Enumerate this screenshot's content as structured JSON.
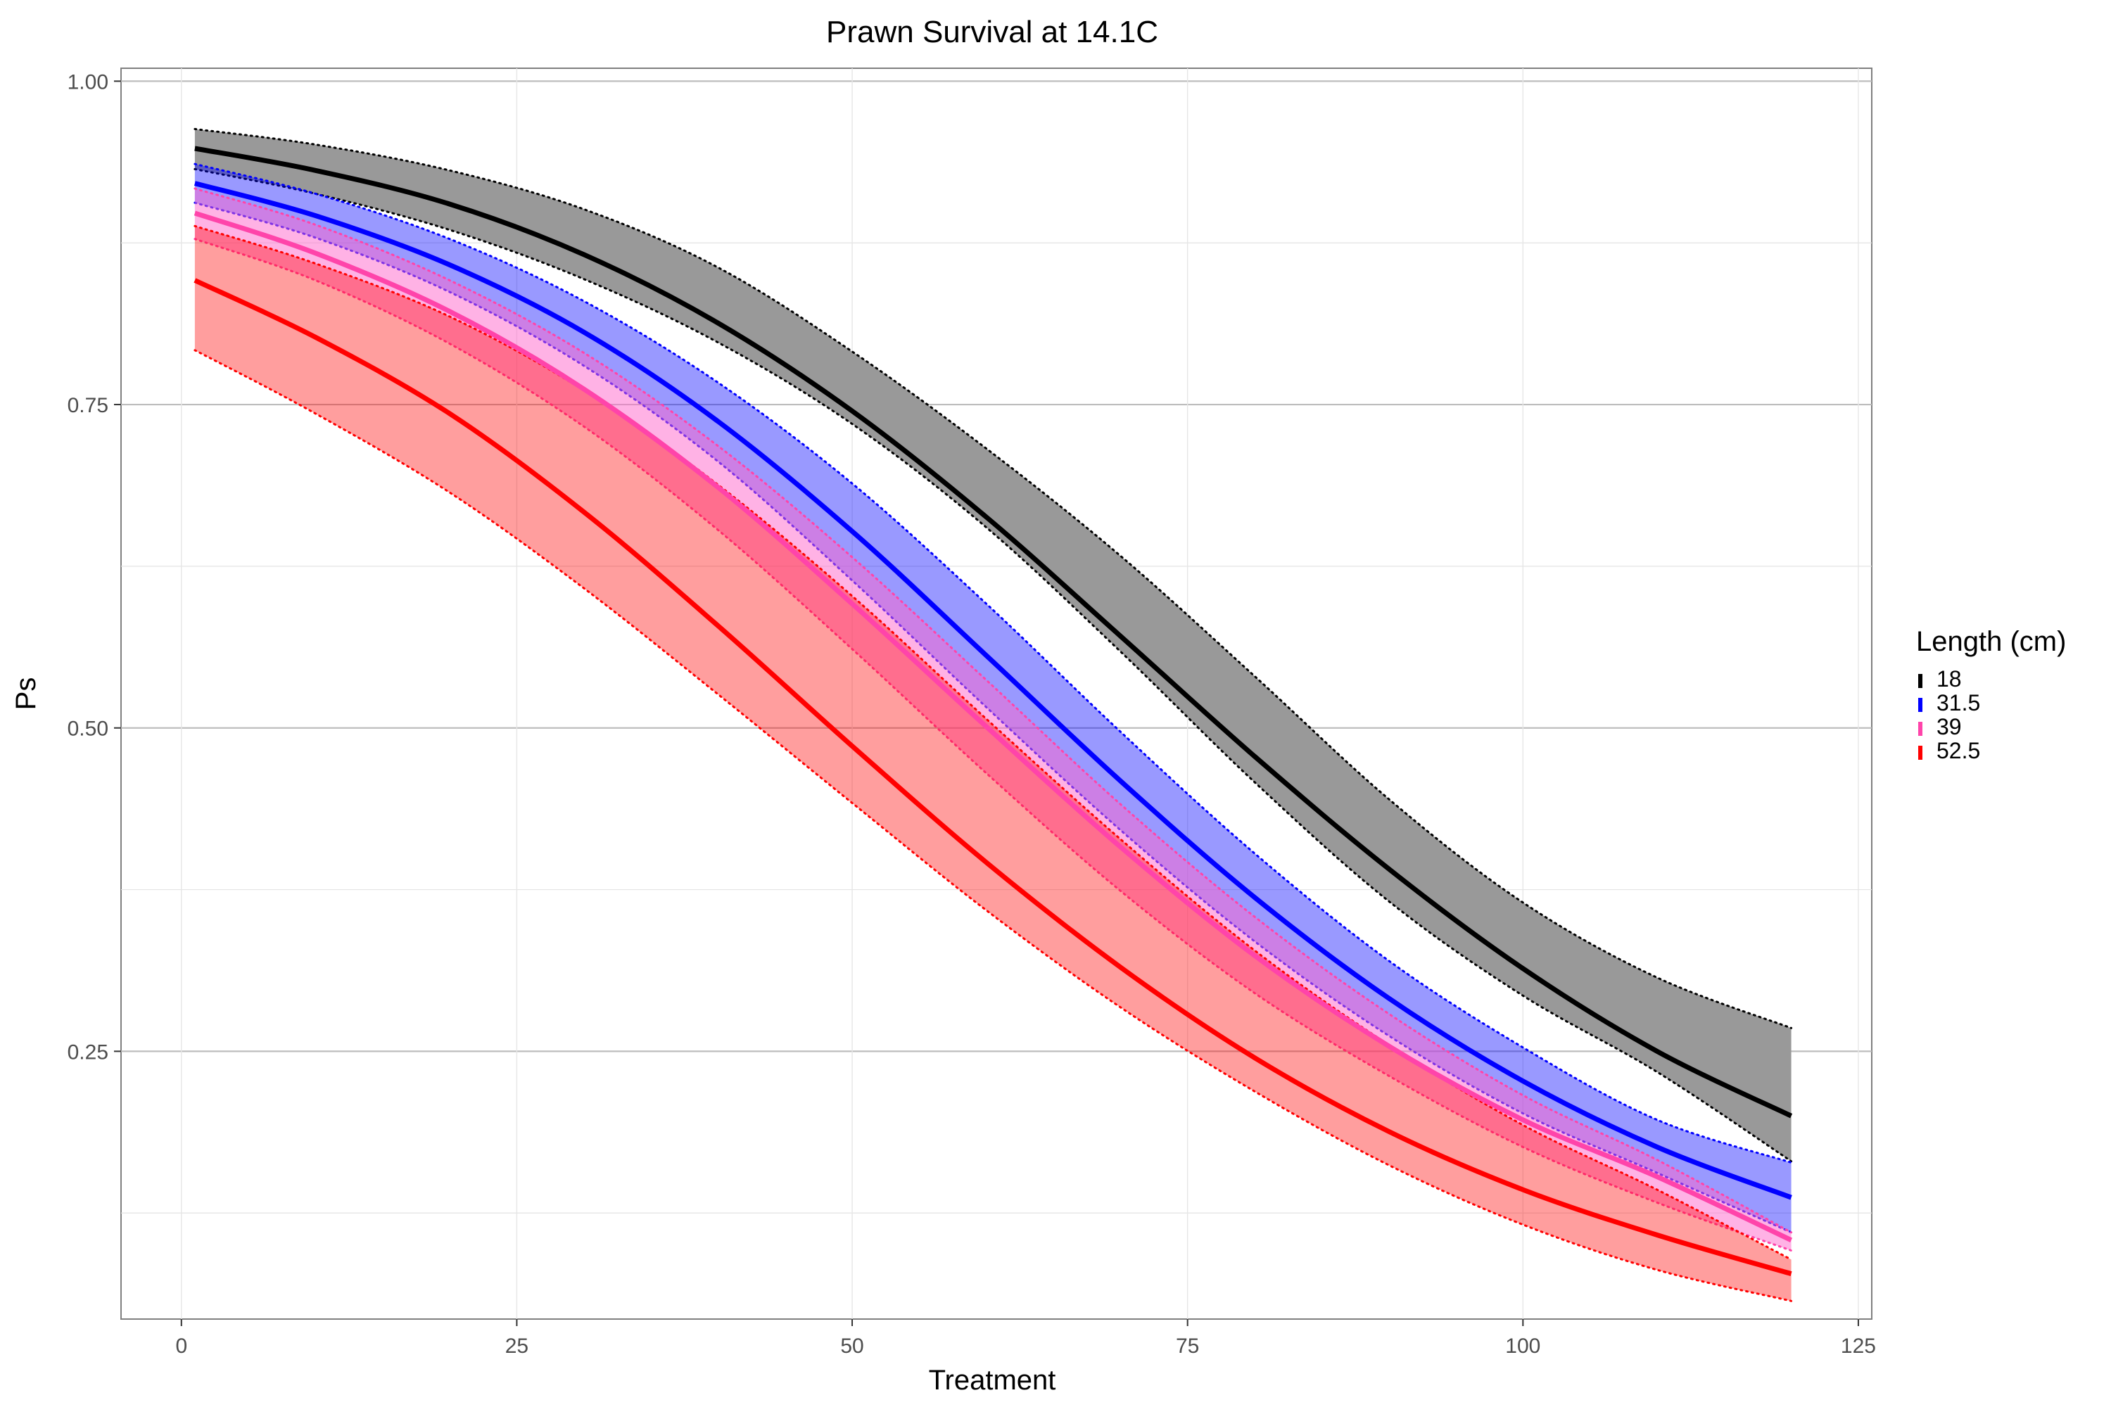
{
  "chart_data": {
    "type": "line",
    "title": "Prawn Survival at 14.1C",
    "xlabel": "Treatment",
    "ylabel": "Ps",
    "xlim": [
      -4.5,
      126
    ],
    "ylim": [
      0.043,
      1.01
    ],
    "x_ticks": [
      0,
      25,
      50,
      75,
      100,
      125
    ],
    "y_ticks": [
      0.25,
      0.5,
      0.75,
      1.0
    ],
    "x_tick_labels": [
      "0",
      "25",
      "50",
      "75",
      "100",
      "125"
    ],
    "y_tick_labels": [
      "0.25",
      "0.50",
      "0.75",
      "1.00"
    ],
    "grid": true,
    "legend": {
      "title": "Length (cm)",
      "placement": "right"
    },
    "x": [
      1,
      10,
      20,
      30,
      40,
      50,
      60,
      70,
      80,
      90,
      100,
      110,
      120
    ],
    "series": [
      {
        "name": "18",
        "color": "#000000",
        "fill": "#999999",
        "fill_opacity": 1.0,
        "values": [
          0.948,
          0.931,
          0.905,
          0.866,
          0.813,
          0.745,
          0.663,
          0.571,
          0.478,
          0.391,
          0.314,
          0.25,
          0.2
        ],
        "lower": [
          0.932,
          0.913,
          0.885,
          0.847,
          0.798,
          0.735,
          0.655,
          0.559,
          0.458,
          0.366,
          0.293,
          0.234,
          0.165
        ],
        "upper": [
          0.963,
          0.951,
          0.931,
          0.901,
          0.856,
          0.791,
          0.716,
          0.633,
          0.54,
          0.445,
          0.365,
          0.307,
          0.268
        ]
      },
      {
        "name": "31.5",
        "color": "#0000ff",
        "fill": "#0000ff",
        "fill_opacity": 0.4,
        "values": [
          0.921,
          0.896,
          0.858,
          0.806,
          0.737,
          0.652,
          0.556,
          0.459,
          0.369,
          0.291,
          0.227,
          0.176,
          0.137
        ],
        "lower": [
          0.906,
          0.879,
          0.837,
          0.78,
          0.706,
          0.614,
          0.516,
          0.421,
          0.335,
          0.262,
          0.202,
          0.156,
          0.11
        ],
        "upper": [
          0.936,
          0.913,
          0.878,
          0.83,
          0.767,
          0.689,
          0.596,
          0.497,
          0.403,
          0.32,
          0.253,
          0.197,
          0.164
        ]
      },
      {
        "name": "39",
        "color": "#ff44aa",
        "fill": "#ff66cc",
        "fill_opacity": 0.5,
        "values": [
          0.898,
          0.867,
          0.822,
          0.762,
          0.686,
          0.596,
          0.501,
          0.408,
          0.324,
          0.254,
          0.197,
          0.153,
          0.104
        ],
        "lower": [
          0.878,
          0.846,
          0.797,
          0.733,
          0.653,
          0.561,
          0.465,
          0.374,
          0.295,
          0.231,
          0.176,
          0.133,
          0.096
        ],
        "upper": [
          0.917,
          0.889,
          0.846,
          0.79,
          0.718,
          0.632,
          0.537,
          0.441,
          0.354,
          0.279,
          0.216,
          0.166,
          0.11
        ]
      },
      {
        "name": "52.5",
        "color": "#ff0000",
        "fill": "#ff0000",
        "fill_opacity": 0.38,
        "values": [
          0.846,
          0.802,
          0.743,
          0.667,
          0.579,
          0.486,
          0.396,
          0.315,
          0.245,
          0.188,
          0.143,
          0.108,
          0.078
        ],
        "lower": [
          0.792,
          0.743,
          0.682,
          0.608,
          0.526,
          0.442,
          0.359,
          0.284,
          0.219,
          0.162,
          0.116,
          0.081,
          0.057
        ],
        "upper": [
          0.888,
          0.859,
          0.818,
          0.761,
          0.688,
          0.602,
          0.507,
          0.414,
          0.328,
          0.255,
          0.193,
          0.143,
          0.089
        ]
      }
    ]
  }
}
